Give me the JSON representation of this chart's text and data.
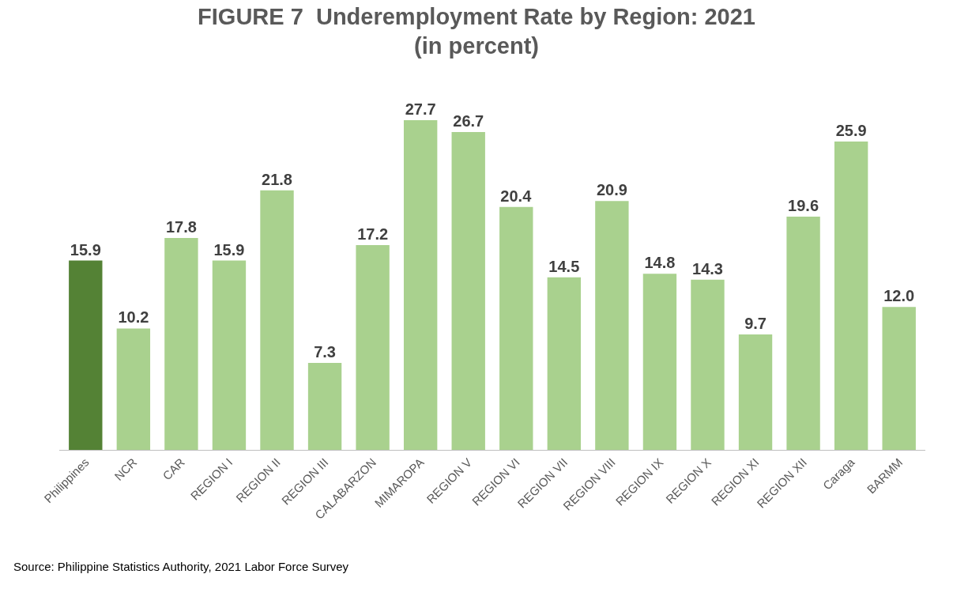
{
  "chart_data": {
    "type": "bar",
    "title": "FIGURE 7  Underemployment Rate by Region: 2021\n(in percent)",
    "categories": [
      "Philippines",
      "NCR",
      "CAR",
      "REGION I",
      "REGION II",
      "REGION III",
      "CALABARZON",
      "MIMAROPA",
      "REGION V",
      "REGION VI",
      "REGION VII",
      "REGION VIII",
      "REGION IX",
      "REGION X",
      "REGION XI",
      "REGION XII",
      "Caraga",
      "BARMM"
    ],
    "values": [
      15.9,
      10.2,
      17.8,
      15.9,
      21.8,
      7.3,
      17.2,
      27.7,
      26.7,
      20.4,
      14.5,
      20.9,
      14.8,
      14.3,
      9.7,
      19.6,
      25.9,
      12.0
    ],
    "colors": [
      "#548235",
      "#a9d18e",
      "#a9d18e",
      "#a9d18e",
      "#a9d18e",
      "#a9d18e",
      "#a9d18e",
      "#a9d18e",
      "#a9d18e",
      "#a9d18e",
      "#a9d18e",
      "#a9d18e",
      "#a9d18e",
      "#a9d18e",
      "#a9d18e",
      "#a9d18e",
      "#a9d18e",
      "#a9d18e"
    ],
    "value_labels": [
      "15.9",
      "10.2",
      "17.8",
      "15.9",
      "21.8",
      "7.3",
      "17.2",
      "27.7",
      "26.7",
      "20.4",
      "14.5",
      "20.9",
      "14.8",
      "14.3",
      "9.7",
      "19.6",
      "25.9",
      "12.0"
    ],
    "annotations": [
      "Source: Philippine Statistics Authority, 2021 Labor Force Survey"
    ],
    "tick_labels": "x"
  }
}
